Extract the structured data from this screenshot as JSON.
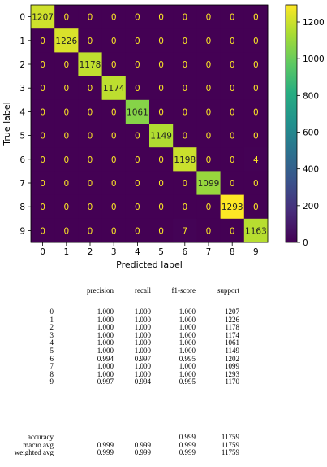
{
  "chart_data": {
    "type": "heatmap",
    "xlabel": "Predicted label",
    "ylabel": "True label",
    "x_tick_labels": [
      "0",
      "1",
      "2",
      "3",
      "4",
      "5",
      "6",
      "7",
      "8",
      "9"
    ],
    "y_tick_labels": [
      "0",
      "1",
      "2",
      "3",
      "4",
      "5",
      "6",
      "7",
      "8",
      "9"
    ],
    "matrix": [
      [
        1207,
        0,
        0,
        0,
        0,
        0,
        0,
        0,
        0,
        0
      ],
      [
        0,
        1226,
        0,
        0,
        0,
        0,
        0,
        0,
        0,
        0
      ],
      [
        0,
        0,
        1178,
        0,
        0,
        0,
        0,
        0,
        0,
        0
      ],
      [
        0,
        0,
        0,
        1174,
        0,
        0,
        0,
        0,
        0,
        0
      ],
      [
        0,
        0,
        0,
        0,
        1061,
        0,
        0,
        0,
        0,
        0
      ],
      [
        0,
        0,
        0,
        0,
        0,
        1149,
        0,
        0,
        0,
        0
      ],
      [
        0,
        0,
        0,
        0,
        0,
        0,
        1198,
        0,
        0,
        4
      ],
      [
        0,
        0,
        0,
        0,
        0,
        0,
        0,
        1099,
        0,
        0
      ],
      [
        0,
        0,
        0,
        0,
        0,
        0,
        0,
        0,
        1293,
        0
      ],
      [
        0,
        0,
        0,
        0,
        0,
        0,
        7,
        0,
        0,
        1163
      ]
    ],
    "colormap": "viridis",
    "colorbar": {
      "range": [
        0,
        1293
      ],
      "ticks": [
        0,
        200,
        400,
        600,
        800,
        1000,
        1200
      ],
      "tick_labels": [
        "0",
        "200",
        "400",
        "600",
        "800",
        "1000",
        "1200"
      ]
    }
  },
  "report": {
    "headers": [
      "precision",
      "recall",
      "f1-score",
      "support"
    ],
    "rows": [
      {
        "label": "0",
        "precision": "1.000",
        "recall": "1.000",
        "f1": "1.000",
        "support": "1207"
      },
      {
        "label": "1",
        "precision": "1.000",
        "recall": "1.000",
        "f1": "1.000",
        "support": "1226"
      },
      {
        "label": "2",
        "precision": "1.000",
        "recall": "1.000",
        "f1": "1.000",
        "support": "1178"
      },
      {
        "label": "3",
        "precision": "1.000",
        "recall": "1.000",
        "f1": "1.000",
        "support": "1174"
      },
      {
        "label": "4",
        "precision": "1.000",
        "recall": "1.000",
        "f1": "1.000",
        "support": "1061"
      },
      {
        "label": "5",
        "precision": "1.000",
        "recall": "1.000",
        "f1": "1.000",
        "support": "1149"
      },
      {
        "label": "6",
        "precision": "0.994",
        "recall": "0.997",
        "f1": "0.995",
        "support": "1202"
      },
      {
        "label": "7",
        "precision": "1.000",
        "recall": "1.000",
        "f1": "1.000",
        "support": "1099"
      },
      {
        "label": "8",
        "precision": "1.000",
        "recall": "1.000",
        "f1": "1.000",
        "support": "1293"
      },
      {
        "label": "9",
        "precision": "0.997",
        "recall": "0.994",
        "f1": "0.995",
        "support": "1170"
      }
    ],
    "summary": [
      {
        "label": "accuracy",
        "precision": "",
        "recall": "",
        "f1": "0.999",
        "support": "11759"
      },
      {
        "label": "macro avg",
        "precision": "0.999",
        "recall": "0.999",
        "f1": "0.999",
        "support": "11759"
      },
      {
        "label": "weighted avg",
        "precision": "0.999",
        "recall": "0.999",
        "f1": "0.999",
        "support": "11759"
      }
    ]
  }
}
